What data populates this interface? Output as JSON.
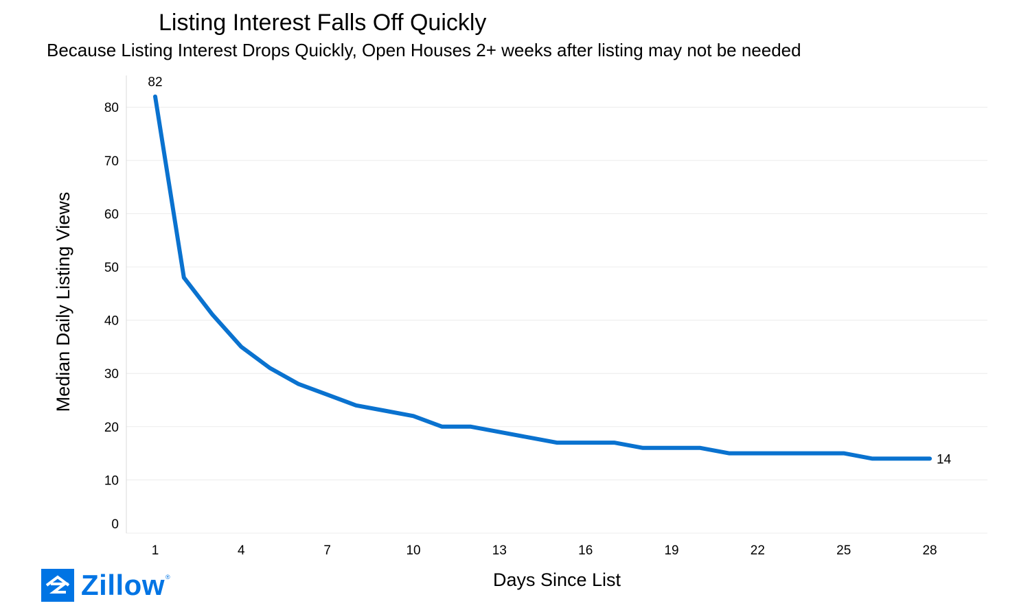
{
  "chart_data": {
    "type": "line",
    "title": "Listing Interest Falls Off Quickly",
    "subtitle": "Because Listing Interest Drops Quickly, Open Houses 2+ weeks after listing may not be needed",
    "xlabel": "Days Since List",
    "ylabel": "Median Daily Listing Views",
    "x": [
      1,
      2,
      3,
      4,
      5,
      6,
      7,
      8,
      9,
      10,
      11,
      12,
      13,
      14,
      15,
      16,
      17,
      18,
      19,
      20,
      21,
      22,
      23,
      24,
      25,
      26,
      27,
      28
    ],
    "series": [
      {
        "values": [
          82,
          48,
          41,
          35,
          31,
          28,
          26,
          24,
          23,
          22,
          20,
          20,
          19,
          18,
          17,
          17,
          17,
          16,
          16,
          16,
          15,
          15,
          15,
          15,
          15,
          14,
          14,
          14
        ]
      }
    ],
    "x_ticks": [
      1,
      4,
      7,
      10,
      13,
      16,
      19,
      22,
      25,
      28
    ],
    "y_ticks": [
      0,
      10,
      20,
      30,
      40,
      50,
      60,
      70,
      80
    ],
    "ylim": [
      0,
      82
    ],
    "xlim": [
      0,
      30
    ],
    "grid": "horizontal",
    "data_labels": [
      {
        "x": 1,
        "value": "82"
      },
      {
        "x": 28,
        "value": "14"
      }
    ],
    "line_color": "#0a72cf"
  },
  "logo": {
    "text": "Zillow",
    "mark": "®",
    "color": "#0074e4"
  }
}
